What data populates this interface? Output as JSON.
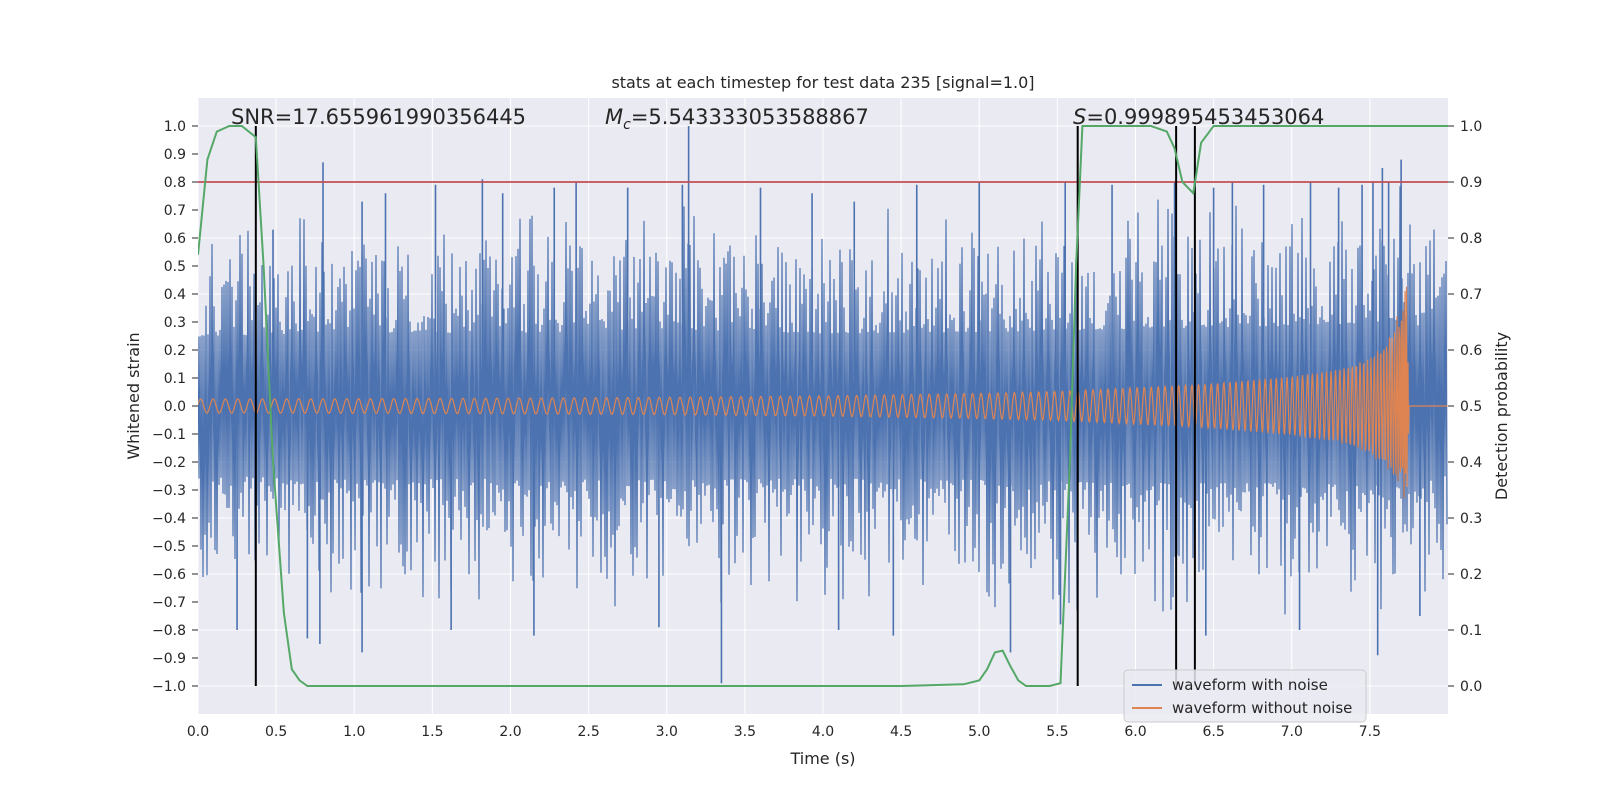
{
  "chart_data": {
    "type": "line",
    "title": "stats at each timestep for test data 235 [signal=1.0]",
    "xlabel": "Time (s)",
    "ylabel": "Whitened strain",
    "y2label": "Detection probability",
    "xlim": [
      0.0,
      8.0
    ],
    "ylim": [
      -1.1,
      1.1
    ],
    "y2lim": [
      -0.05,
      1.05
    ],
    "xticks": [
      0.0,
      0.5,
      1.0,
      1.5,
      2.0,
      2.5,
      3.0,
      3.5,
      4.0,
      4.5,
      5.0,
      5.5,
      6.0,
      6.5,
      7.0,
      7.5
    ],
    "xtick_labels": [
      "0.0",
      "0.5",
      "1.0",
      "1.5",
      "2.0",
      "2.5",
      "3.0",
      "3.5",
      "4.0",
      "4.5",
      "5.0",
      "5.5",
      "6.0",
      "6.5",
      "7.0",
      "7.5"
    ],
    "yticks": [
      1.0,
      0.9,
      0.8,
      0.7,
      0.6,
      0.5,
      0.4,
      0.3,
      0.2,
      0.1,
      0.0,
      -0.1,
      -0.2,
      -0.3,
      -0.4,
      -0.5,
      -0.6,
      -0.7,
      -0.8,
      -0.9,
      -1.0
    ],
    "ytick_labels": [
      "1.0",
      "0.9",
      "0.8",
      "0.7",
      "0.6",
      "0.5",
      "0.4",
      "0.3",
      "0.2",
      "0.1",
      "0.0",
      "−0.1",
      "−0.2",
      "−0.3",
      "−0.4",
      "−0.5",
      "−0.6",
      "−0.7",
      "−0.8",
      "−0.9",
      "−1.0"
    ],
    "y2ticks": [
      1.0,
      0.9,
      0.8,
      0.7,
      0.6,
      0.5,
      0.4,
      0.3,
      0.2,
      0.1,
      0.0
    ],
    "y2tick_labels": [
      "1.0",
      "0.9",
      "0.8",
      "0.7",
      "0.6",
      "0.5",
      "0.4",
      "0.3",
      "0.2",
      "0.1",
      "0.0"
    ],
    "threshold": {
      "y2": 0.9,
      "color": "#c44e52"
    },
    "vertical_lines_x": [
      0.37,
      5.63,
      6.26,
      6.38
    ],
    "annotations": {
      "snr_text": "SNR=17.655961990356445",
      "mc_label": "M",
      "mc_sub": "c",
      "mc_value": "=5.543333053588867",
      "s_label": "S",
      "s_value": "=0.999895453453064"
    },
    "series": [
      {
        "name": "waveform with noise",
        "color": "#4c72b0",
        "description": "noise envelope",
        "envelope_x": [
          0.0,
          1.0,
          2.0,
          3.0,
          4.0,
          5.0,
          6.0,
          7.0,
          7.74,
          8.0
        ],
        "envelope_upper": [
          0.45,
          0.48,
          0.47,
          0.5,
          0.47,
          0.48,
          0.5,
          0.52,
          0.55,
          0.45
        ],
        "envelope_lower": [
          -0.45,
          -0.48,
          -0.47,
          -0.48,
          -0.47,
          -0.48,
          -0.5,
          -0.5,
          -0.52,
          -0.45
        ],
        "peaks_x": [
          0.48,
          0.8,
          1.05,
          1.2,
          1.52,
          1.82,
          1.95,
          2.28,
          2.42,
          2.75,
          3.1,
          3.14,
          3.6,
          3.93,
          4.2,
          4.6,
          5.0,
          5.55,
          5.85,
          6.25,
          6.5,
          6.62,
          6.82,
          7.12,
          7.3,
          7.45,
          7.52,
          7.58,
          7.62,
          7.7
        ],
        "peaks_y": [
          0.63,
          0.87,
          0.73,
          0.76,
          0.79,
          0.81,
          0.76,
          0.78,
          0.8,
          0.78,
          0.79,
          1.0,
          0.78,
          0.76,
          0.73,
          0.79,
          0.8,
          0.8,
          0.79,
          0.8,
          0.78,
          0.8,
          0.79,
          0.8,
          0.78,
          0.79,
          0.8,
          0.85,
          0.8,
          0.88
        ],
        "troughs_x": [
          0.25,
          0.7,
          0.78,
          1.05,
          1.62,
          2.15,
          2.95,
          3.35,
          4.1,
          4.45,
          5.2,
          5.52,
          6.45,
          7.05,
          7.55,
          7.82
        ],
        "troughs_y": [
          -0.8,
          -0.83,
          -0.85,
          -0.88,
          -0.8,
          -0.82,
          -0.79,
          -0.99,
          -0.8,
          -0.82,
          -0.88,
          -0.78,
          -0.82,
          -0.8,
          -0.89,
          -0.75
        ]
      },
      {
        "name": "waveform without noise",
        "color": "#dd8452",
        "description": "chirp amplitude envelope",
        "envelope_x": [
          0.0,
          1.0,
          2.0,
          3.0,
          4.0,
          5.0,
          5.5,
          6.0,
          6.5,
          7.0,
          7.3,
          7.5,
          7.65,
          7.72,
          7.74,
          7.75,
          8.0
        ],
        "envelope_upper": [
          0.025,
          0.026,
          0.028,
          0.031,
          0.036,
          0.045,
          0.052,
          0.065,
          0.08,
          0.105,
          0.13,
          0.17,
          0.26,
          0.44,
          0.44,
          0.0,
          0.0
        ],
        "envelope_lower": [
          -0.025,
          -0.026,
          -0.028,
          -0.031,
          -0.036,
          -0.045,
          -0.052,
          -0.065,
          -0.08,
          -0.105,
          -0.13,
          -0.17,
          -0.25,
          -0.34,
          -0.36,
          0.0,
          0.0
        ]
      },
      {
        "name": "detection probability",
        "color": "#55a868",
        "axis": "right",
        "x": [
          0.0,
          0.06,
          0.12,
          0.2,
          0.28,
          0.37,
          0.42,
          0.48,
          0.55,
          0.6,
          0.65,
          0.7,
          0.75,
          0.9,
          1.5,
          2.5,
          3.5,
          4.5,
          4.9,
          5.0,
          5.05,
          5.1,
          5.15,
          5.2,
          5.25,
          5.3,
          5.38,
          5.45,
          5.52,
          5.58,
          5.62,
          5.66,
          5.72,
          5.9,
          6.1,
          6.2,
          6.25,
          6.3,
          6.37,
          6.42,
          6.5,
          6.6,
          6.9,
          7.5,
          8.0
        ],
        "y": [
          0.77,
          0.94,
          0.99,
          1.0,
          1.0,
          0.98,
          0.75,
          0.4,
          0.13,
          0.03,
          0.01,
          0.0,
          0.0,
          0.0,
          0.0,
          0.0,
          0.0,
          0.0,
          0.003,
          0.01,
          0.03,
          0.06,
          0.063,
          0.035,
          0.01,
          0.0,
          0.0,
          0.0,
          0.005,
          0.4,
          0.75,
          1.0,
          1.0,
          1.0,
          1.0,
          0.99,
          0.96,
          0.9,
          0.88,
          0.97,
          1.0,
          1.0,
          1.0,
          1.0,
          1.0
        ]
      }
    ],
    "legend": {
      "placement": "lower-right",
      "entries": [
        {
          "label": "waveform with noise",
          "color": "#4c72b0"
        },
        {
          "label": "waveform without noise",
          "color": "#dd8452"
        }
      ]
    },
    "colors": {
      "axes_bg": "#eaeaf2",
      "grid": "#ffffff",
      "text": "#262626",
      "vline": "#000000"
    }
  }
}
